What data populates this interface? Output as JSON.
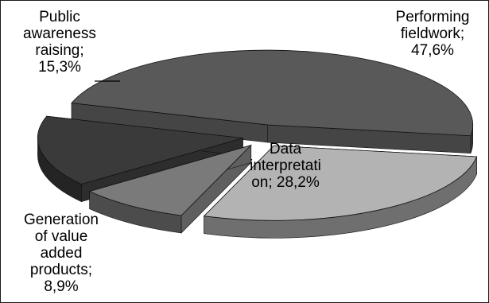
{
  "chart_data": {
    "type": "pie",
    "three_d": true,
    "exploded": true,
    "legend": "none",
    "slices": [
      {
        "name": "Performing fieldwork",
        "value": 47.6,
        "label": "Performing\nfieldwork;\n47,6%",
        "color": "#595959"
      },
      {
        "name": "Data interpretation",
        "value": 28.2,
        "label": "Data\ninterpretati\non; 28,2%",
        "color": "#b3b3b3"
      },
      {
        "name": "Generation of value added products",
        "value": 8.9,
        "label": "Generation\nof value\nadded\nproducts;\n8,9%",
        "color": "#7a7a7a"
      },
      {
        "name": "Public awareness raising",
        "value": 15.3,
        "label": "Public\nawareness\nraising;\n15,3%",
        "color": "#3a3a3a"
      }
    ]
  }
}
